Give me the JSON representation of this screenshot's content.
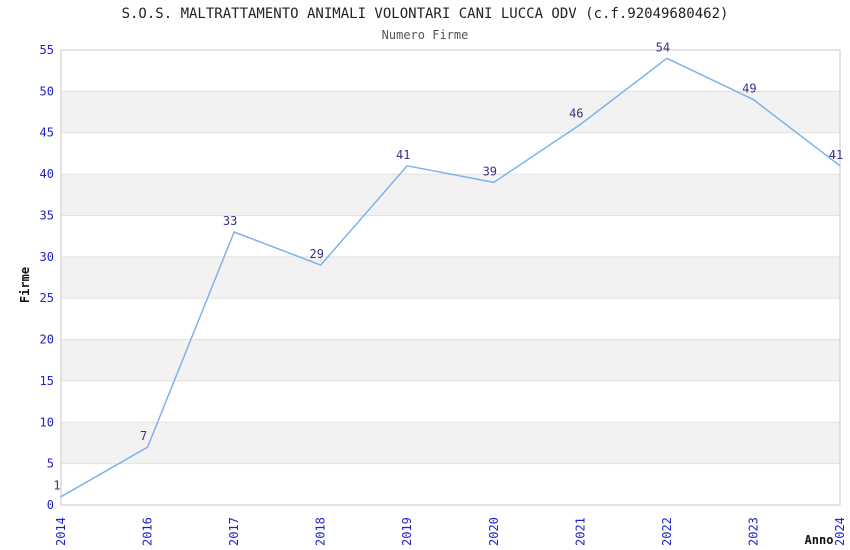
{
  "chart_data": {
    "type": "line",
    "title": "S.O.S. MALTRATTAMENTO ANIMALI VOLONTARI CANI LUCCA ODV (c.f.92049680462)",
    "subtitle": "Numero Firme",
    "xlabel": "Anno",
    "ylabel": "Firme",
    "categories": [
      "2014",
      "2016",
      "2017",
      "2018",
      "2019",
      "2020",
      "2021",
      "2022",
      "2023",
      "2024"
    ],
    "values": [
      1,
      7,
      33,
      29,
      41,
      39,
      46,
      54,
      49,
      41
    ],
    "data_labels": [
      "1",
      "7",
      "33",
      "29",
      "41",
      "39",
      "46",
      "54",
      "49",
      "41"
    ],
    "ylim": [
      0,
      55
    ],
    "ytick_step": 5,
    "yticks": [
      "0",
      "5",
      "10",
      "15",
      "20",
      "25",
      "30",
      "35",
      "40",
      "45",
      "50",
      "55"
    ],
    "grid": "horizontal alternating bands every 5 units",
    "legend_position": "none",
    "colors": {
      "line": "#7fb2e8",
      "tick_label": "#2222cc",
      "data_label": "#333388",
      "band": "#f2f2f2",
      "gridline": "#e2e2e2",
      "plot_border": "#c9c9c9",
      "title_text": "#222222",
      "subtitle_text": "#555555",
      "axis_title_text": "#111111",
      "background": "#ffffff"
    }
  }
}
